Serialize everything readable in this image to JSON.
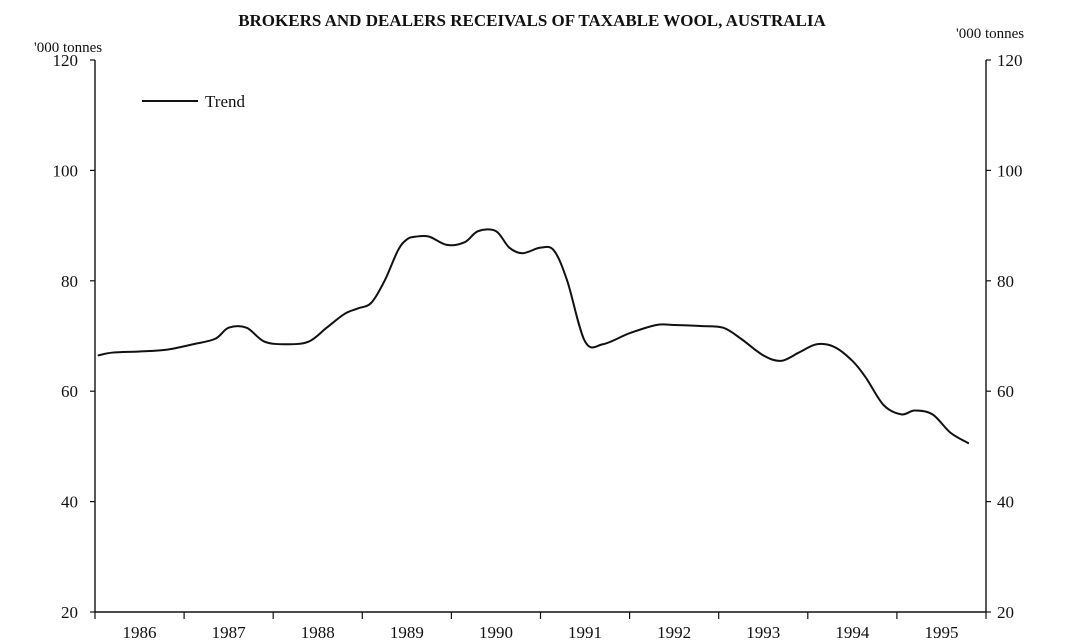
{
  "chart_data": {
    "type": "line",
    "title": "BROKERS AND DEALERS RECEIVALS OF TAXABLE WOOL, AUSTRALIA",
    "left_unit_label": "'000 tonnes",
    "right_unit_label": "'000 tonnes",
    "ylim": [
      20,
      120
    ],
    "left_yticks": [
      20,
      40,
      60,
      80,
      100,
      120
    ],
    "right_yticks": [
      20,
      40,
      60,
      80,
      100,
      120
    ],
    "xlim": [
      1985.5,
      1995.5
    ],
    "x_ticks": [
      1985.5,
      1986.5,
      1987.5,
      1988.5,
      1989.5,
      1990.5,
      1991.5,
      1992.5,
      1993.5,
      1994.5,
      1995.5
    ],
    "x_labels": [
      "1986",
      "1987",
      "1988",
      "1989",
      "1990",
      "1991",
      "1992",
      "1993",
      "1994",
      "1995"
    ],
    "legend": {
      "entries": [
        "Trend"
      ],
      "placement": "top-left"
    },
    "series": [
      {
        "name": "Trend",
        "color": "#111111",
        "x": [
          1985.54,
          1985.7,
          1986.0,
          1986.3,
          1986.6,
          1986.85,
          1987.0,
          1987.2,
          1987.4,
          1987.65,
          1987.9,
          1988.1,
          1988.3,
          1988.45,
          1988.6,
          1988.75,
          1988.9,
          1989.0,
          1989.1,
          1989.25,
          1989.45,
          1989.65,
          1989.8,
          1990.0,
          1990.15,
          1990.3,
          1990.5,
          1990.65,
          1990.8,
          1991.0,
          1991.2,
          1991.5,
          1991.8,
          1992.0,
          1992.3,
          1992.55,
          1992.75,
          1993.0,
          1993.2,
          1993.4,
          1993.6,
          1993.8,
          1994.0,
          1994.15,
          1994.35,
          1994.55,
          1994.7,
          1994.9,
          1995.1,
          1995.3
        ],
        "values": [
          66.5,
          67,
          67.2,
          67.5,
          68.5,
          69.5,
          71.5,
          71.5,
          69,
          68.5,
          69,
          71.5,
          74,
          75,
          76,
          80,
          85.5,
          87.5,
          88,
          88,
          86.5,
          87,
          89,
          89,
          86,
          85,
          86,
          85.5,
          80,
          69,
          68.5,
          70.5,
          72,
          72,
          71.8,
          71.5,
          69.5,
          66.5,
          65.5,
          67,
          68.5,
          68,
          65.5,
          62.5,
          57.5,
          55.8,
          56.5,
          55.8,
          52.5,
          50.6
        ]
      }
    ],
    "grid": false
  }
}
